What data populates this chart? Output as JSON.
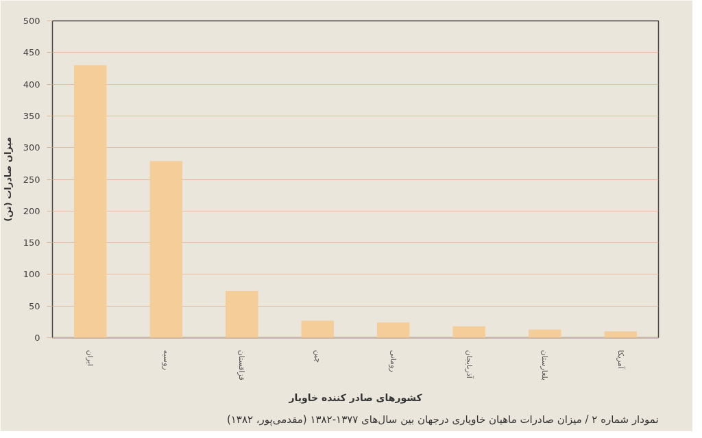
{
  "chart_data": {
    "type": "bar",
    "categories": [
      "ایران",
      "روسیه",
      "قزاقستان",
      "چین",
      "رومانی",
      "آذربایجان",
      "بلغارستان",
      "آمریکا"
    ],
    "values": [
      430,
      279,
      74,
      27,
      24,
      18,
      13,
      10
    ],
    "color": "#f5cd98",
    "ylim": [
      0,
      500
    ],
    "yticks": [
      0,
      50,
      100,
      150,
      200,
      250,
      300,
      350,
      400,
      450,
      500
    ],
    "grid": "y",
    "xlabel": "کشورهای صادر کننده خاویار",
    "ylabel": "میزان صادرات (تن)",
    "annotations": [
      "نمودار شماره ۲ / میزان صادرات ماهیان خاویاری درجهان بین سال‌های ۱۳۷۷-۱۳۸۲ (مقدمی‌پور، ۱۳۸۲)"
    ]
  }
}
